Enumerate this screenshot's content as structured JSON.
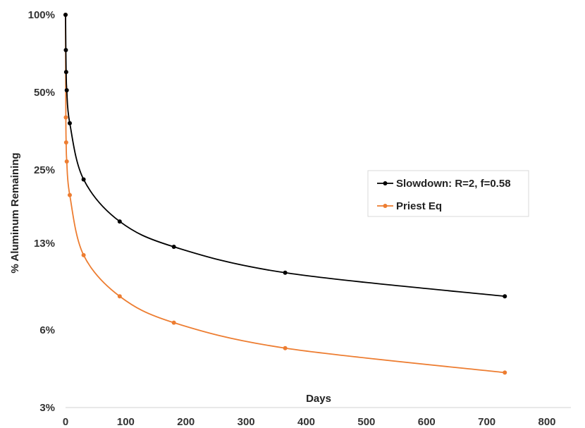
{
  "chart_data": {
    "type": "line",
    "title": "",
    "xlabel": "Days",
    "ylabel": "% Aluminum Remaining",
    "x_axis": {
      "min": 0,
      "max": 800,
      "ticks": [
        0,
        100,
        200,
        300,
        400,
        500,
        600,
        700,
        800
      ],
      "tick_labels": [
        "0",
        "100",
        "200",
        "300",
        "400",
        "500",
        "600",
        "700",
        "800"
      ]
    },
    "y_axis": {
      "scale": "log",
      "min": 3,
      "max": 100,
      "ticks": [
        3,
        6,
        13,
        25,
        50,
        100
      ],
      "tick_labels": [
        "3%",
        "6%",
        "13%",
        "25%",
        "50%",
        "100%"
      ]
    },
    "grid": false,
    "legend_position": "right",
    "series": [
      {
        "name": "Slowdown: R=2, f=0.58",
        "color": "#000000",
        "x": [
          0,
          0.5,
          1,
          2,
          7,
          30,
          90,
          180,
          365,
          730
        ],
        "y": [
          100,
          73,
          60,
          51,
          38,
          23,
          15.8,
          12.6,
          10,
          8.1
        ]
      },
      {
        "name": "Priest Eq",
        "color": "#ED7D31",
        "x": [
          0,
          0.5,
          1,
          2,
          7,
          30,
          90,
          180,
          365,
          730
        ],
        "y": [
          100,
          40,
          32,
          27,
          20,
          11.7,
          8.1,
          6.4,
          5.1,
          4.1
        ]
      }
    ]
  }
}
